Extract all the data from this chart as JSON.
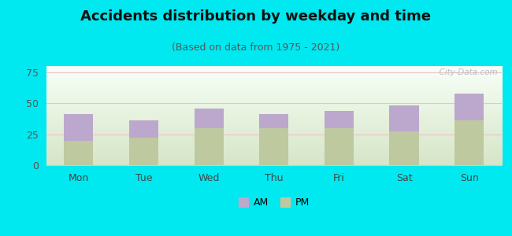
{
  "categories": [
    "Mon",
    "Tue",
    "Wed",
    "Thu",
    "Fri",
    "Sat",
    "Sun"
  ],
  "pm_values": [
    20,
    22,
    30,
    30,
    30,
    27,
    36
  ],
  "am_values": [
    21,
    14,
    16,
    11,
    14,
    21,
    22
  ],
  "am_color": "#bba8cc",
  "pm_color": "#bec9a0",
  "title": "Accidents distribution by weekday and time",
  "subtitle": "(Based on data from 1975 - 2021)",
  "ylim": [
    0,
    80
  ],
  "yticks": [
    0,
    25,
    50,
    75
  ],
  "background_color": "#00e8f0",
  "watermark": "  City-Data.com",
  "legend_labels": [
    "AM",
    "PM"
  ],
  "title_fontsize": 13,
  "subtitle_fontsize": 9,
  "tick_fontsize": 9,
  "legend_fontsize": 9,
  "bar_width": 0.45
}
